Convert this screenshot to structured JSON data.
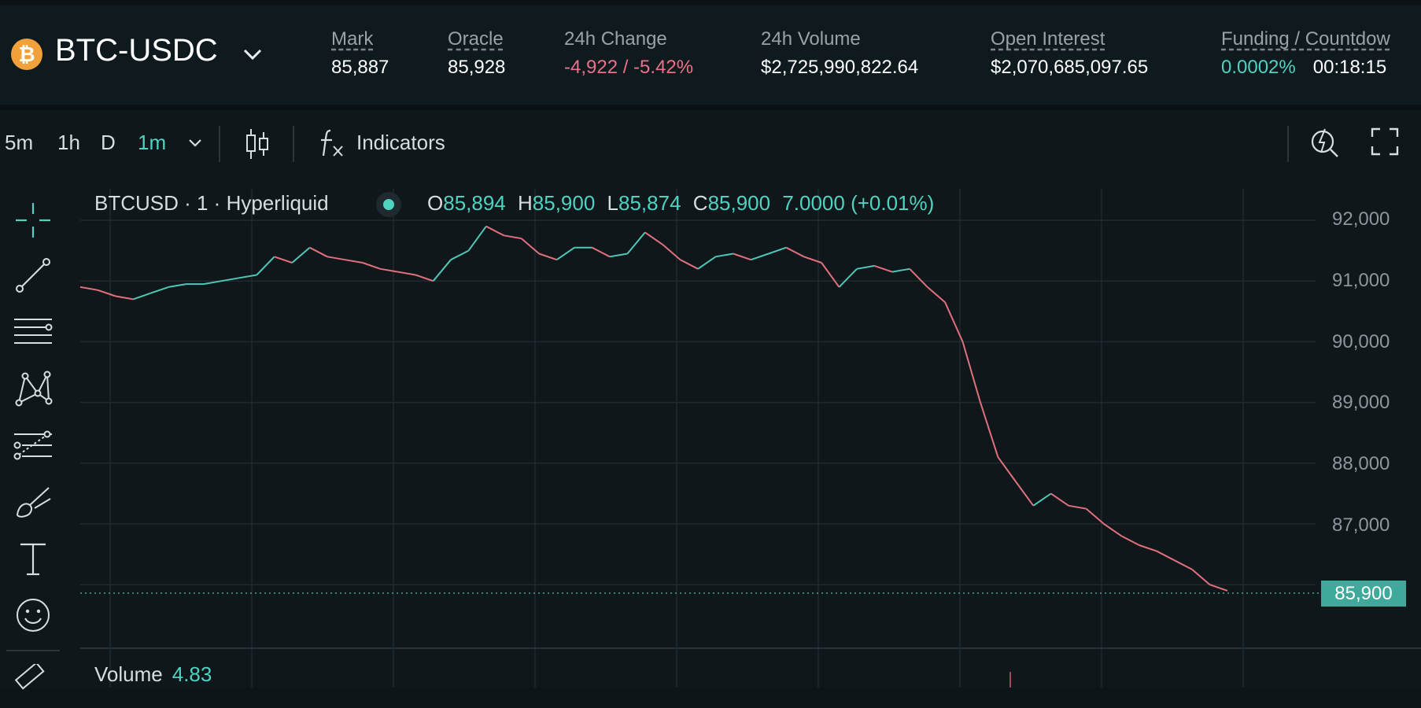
{
  "header": {
    "coin_symbol": "₿",
    "pair": "BTC-USDC",
    "stats": [
      {
        "label": "Mark",
        "value": "85,887"
      },
      {
        "label": "Oracle",
        "value": "85,928"
      },
      {
        "label": "24h Change",
        "value": "-4,922 / -5.42%"
      },
      {
        "label": "24h Volume",
        "value": "$2,725,990,822.64"
      },
      {
        "label": "Open Interest",
        "value": "$2,070,685,097.65"
      },
      {
        "label": "Funding / Countdow",
        "value": "0.0002%",
        "value2": "00:18:15"
      }
    ]
  },
  "toolbar": {
    "timeframes": [
      "5m",
      "1h",
      "D",
      "1m"
    ],
    "active_timeframe": "1m",
    "indicators_label": "Indicators"
  },
  "chart": {
    "legend": "BTCUSD · 1 · Hyperliquid",
    "ohlc": {
      "o_label": "O",
      "o": "85,894",
      "h_label": "H",
      "h": "85,900",
      "l_label": "L",
      "l": "85,874",
      "c_label": "C",
      "c": "85,900",
      "change": "7.0000 (+0.01%)"
    },
    "last_price": "85,900",
    "volume_label": "Volume",
    "volume_value": "4.83"
  },
  "chart_data": {
    "type": "line",
    "title": "",
    "xlabel": "",
    "ylabel": "",
    "ylim": [
      85500,
      92300
    ],
    "yticks": [
      "92,000",
      "91,000",
      "90,000",
      "89,000",
      "88,000",
      "87,000"
    ],
    "grid": true,
    "series": [
      {
        "values": [
          90900,
          90850,
          90750,
          90700,
          90800,
          90900,
          90950,
          90950,
          91000,
          91050,
          91100,
          91400,
          91300,
          91550,
          91400,
          91350,
          91300,
          91200,
          91150,
          91100,
          91000,
          91350,
          91500,
          91900,
          91750,
          91700,
          91450,
          91350,
          91550,
          91550,
          91400,
          91450,
          91800,
          91600,
          91350,
          91200,
          91400,
          91450,
          91350,
          91450,
          91550,
          91400,
          91300,
          90900,
          91200,
          91250,
          91150,
          91200,
          90900,
          90650,
          90000,
          89000,
          88100,
          87700,
          87300,
          87500,
          87300,
          87250,
          87000,
          86800,
          86650,
          86550,
          86400,
          86250,
          86000,
          85900
        ]
      }
    ]
  },
  "colors": {
    "accent": "#50d2c1",
    "negative": "#ed7088",
    "coin": "#f2a13a"
  },
  "icons": [
    "crosshair-icon",
    "trend-line-icon",
    "horizontal-lines-icon",
    "pattern-icon",
    "fib-icon",
    "brush-icon",
    "text-icon",
    "emoji-icon",
    "ruler-icon",
    "chevron-down-icon",
    "candles-icon",
    "fx-icon",
    "zoom-icon",
    "fullscreen-icon"
  ]
}
